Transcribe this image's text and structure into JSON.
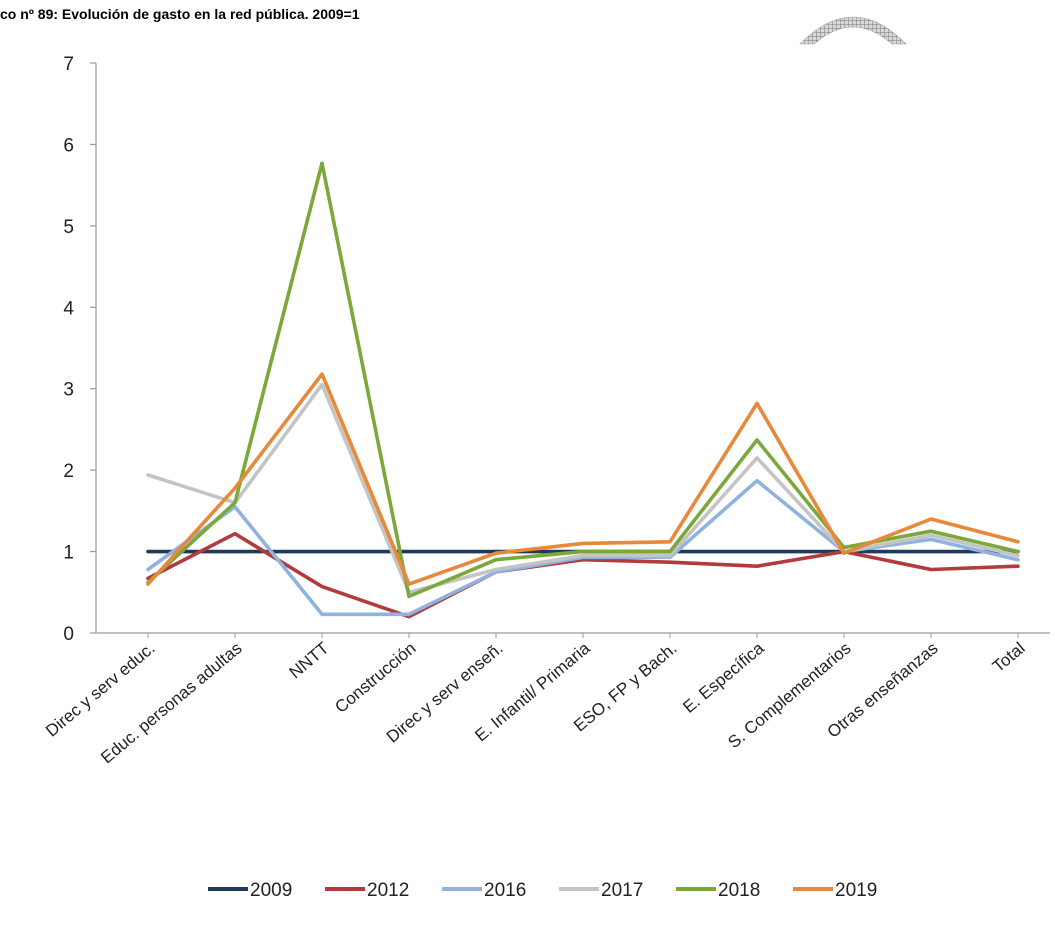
{
  "chart_data": {
    "type": "line",
    "title": "co nº 89: Evolución de gasto en la red pública. 2009=1",
    "categories": [
      "Direc y serv educ.",
      "Educ. personas adultas",
      "NNTT",
      "Construcción",
      "Direc y serv enseñ.",
      "E. Infantil/ Primaria",
      "ESO, FP y Bach.",
      "E. Específica",
      "S. Complementarios",
      "Otras enseñanzas",
      "Total"
    ],
    "yticks": [
      "0",
      "1",
      "2",
      "3",
      "4",
      "5",
      "6",
      "7"
    ],
    "ylim": [
      0,
      7
    ],
    "grid": false,
    "legend_position": "bottom",
    "series": [
      {
        "name": "2009",
        "color": "#1f3a5a",
        "values": [
          1,
          1,
          1,
          1,
          1,
          1,
          1,
          1,
          1,
          1,
          1
        ]
      },
      {
        "name": "2012",
        "color": "#b23b3b",
        "values": [
          0.67,
          1.22,
          0.57,
          0.2,
          0.75,
          0.9,
          0.87,
          0.82,
          1.0,
          0.78,
          0.82
        ]
      },
      {
        "name": "2016",
        "color": "#8fb3de",
        "values": [
          0.78,
          1.55,
          0.23,
          0.23,
          0.75,
          0.93,
          0.93,
          1.87,
          1.0,
          1.15,
          0.9
        ]
      },
      {
        "name": "2017",
        "color": "#c4c4c4",
        "values": [
          1.94,
          1.6,
          3.05,
          0.5,
          0.78,
          0.95,
          0.95,
          2.15,
          1.0,
          1.2,
          0.95
        ]
      },
      {
        "name": "2018",
        "color": "#7aa83a",
        "values": [
          0.62,
          1.6,
          5.77,
          0.45,
          0.9,
          1.0,
          1.0,
          2.37,
          1.05,
          1.25,
          1.0
        ]
      },
      {
        "name": "2019",
        "color": "#e8883a",
        "values": [
          0.6,
          1.78,
          3.18,
          0.6,
          0.98,
          1.1,
          1.12,
          2.82,
          0.98,
          1.4,
          1.12
        ]
      }
    ]
  }
}
